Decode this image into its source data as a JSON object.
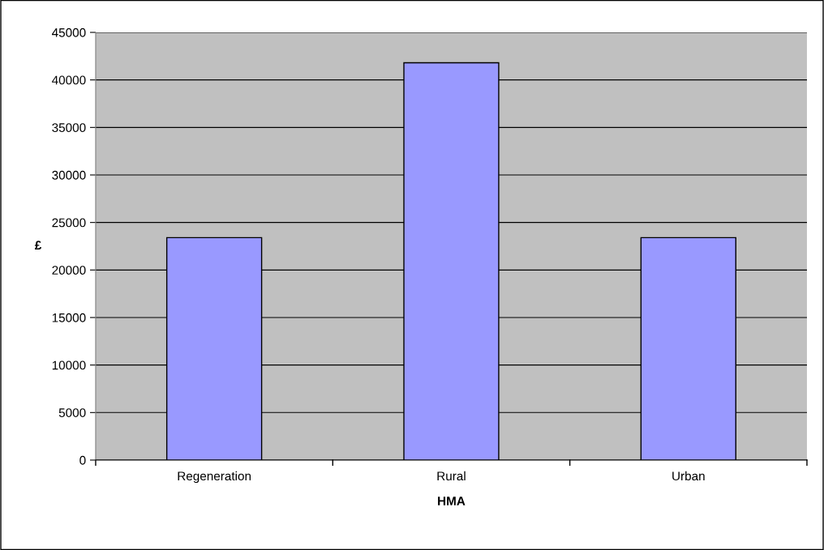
{
  "chart_data": {
    "type": "bar",
    "xlabel": "HMA",
    "ylabel": "£",
    "categories": [
      "Regeneration",
      "Rural",
      "Urban"
    ],
    "values": [
      23400,
      41800,
      23400
    ],
    "color": "#9999ff",
    "ylim": [
      0,
      45000
    ],
    "yticks": [
      0,
      5000,
      10000,
      15000,
      20000,
      25000,
      30000,
      35000,
      40000,
      45000
    ],
    "grid": "y",
    "legend": false
  }
}
